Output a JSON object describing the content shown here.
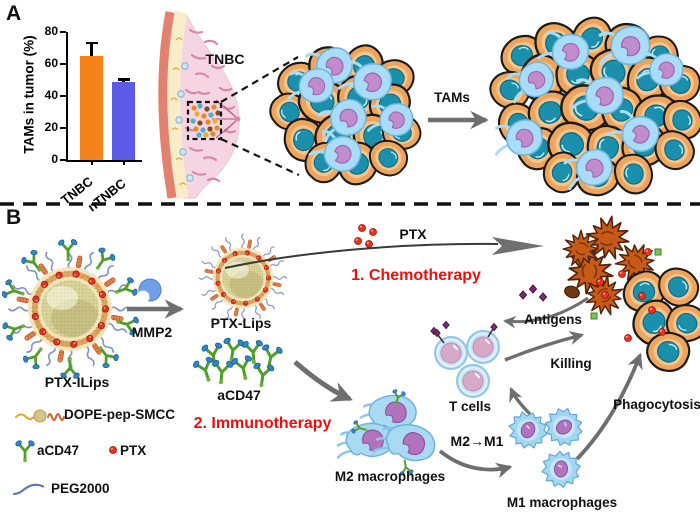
{
  "figure": {
    "panel_a": {
      "label": "A",
      "tnbc_label": "TNBC",
      "tams_arrow_label": "TAMs"
    },
    "panel_b": {
      "label": "B",
      "ptx_ilips_label": "PTX-ILips",
      "mmp2_label": "MMP2",
      "ptx_lips_label": "PTX-Lips",
      "acd47_label": "aCD47",
      "ptx_label": "PTX",
      "chemotherapy_label": "1. Chemotherapy",
      "immunotherapy_label": "2. Immunotherapy",
      "antigens_label": "Antigens",
      "killing_label": "Killing",
      "t_cells_label": "T cells",
      "m2_to_m1_label": "M2→M1",
      "m2_macrophages_label": "M2 macrophages",
      "m1_macrophages_label": "M1 macrophages",
      "phagocytosis_label": "Phagocytosis"
    },
    "legend": {
      "items": [
        {
          "icon": "dope-pep-smcc-icon",
          "label": "DOPE-pep-SMCC"
        },
        {
          "icon": "acd47-antibody-icon",
          "label": "aCD47"
        },
        {
          "icon": "ptx-dot-icon",
          "label": "PTX"
        },
        {
          "icon": "peg2000-wave-icon",
          "label": "PEG2000"
        }
      ]
    },
    "colors": {
      "red_text": "#EE0E0E",
      "arrow_gray": "#6E6E6E",
      "tumor_cell": "#EFA45B",
      "tumor_nucleus": "#1B90AC",
      "macrophage_body": "#A9DCF6",
      "macrophage_nucleus": "#B273BE",
      "dead_cell": "#C75A17",
      "t_cell_nucleus": "#D7A9C9",
      "liposome_ring": "#DCA45E",
      "liposome_core": "#DAD49B",
      "ptx_red": "#E83020",
      "antibody_green": "#4F9E26",
      "peg_blue": "#8093C5"
    }
  },
  "chart_data": {
    "type": "bar",
    "categories": [
      "TNBC",
      "nTNBC"
    ],
    "values": [
      65,
      49
    ],
    "errors": [
      9,
      2
    ],
    "bar_colors": [
      "#F8821A",
      "#5B5BE8"
    ],
    "title": "",
    "xlabel": "",
    "ylabel": "TAMs in tumor (%)",
    "ylim": [
      0,
      80
    ],
    "yticks": [
      0,
      20,
      40,
      60,
      80
    ],
    "grid": false,
    "legend_position": "none"
  }
}
